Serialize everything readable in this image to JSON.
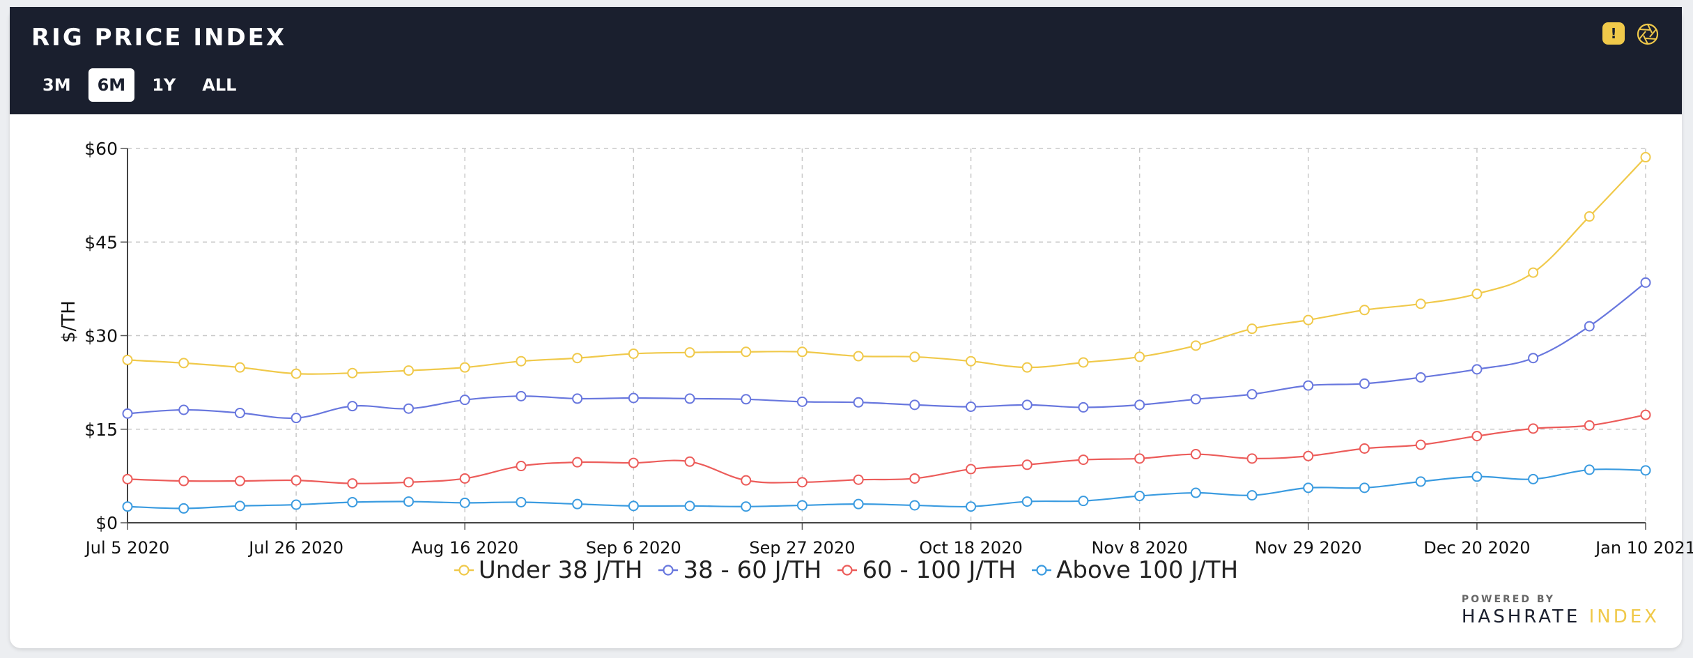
{
  "header": {
    "title": "RIG PRICE INDEX",
    "tabs": [
      {
        "label": "3M",
        "active": false
      },
      {
        "label": "6M",
        "active": true
      },
      {
        "label": "1Y",
        "active": false
      },
      {
        "label": "ALL",
        "active": false
      }
    ],
    "alert_icon": "!",
    "icons": [
      "alert-icon",
      "aperture-icon"
    ]
  },
  "colors": {
    "header_bg": "#1a1f2e",
    "accent": "#f0c94a"
  },
  "chart_data": {
    "type": "line",
    "ylabel": "$/TH",
    "ylim": [
      0,
      60
    ],
    "yticks": [
      {
        "value": 0,
        "label": "$0"
      },
      {
        "value": 15,
        "label": "$15"
      },
      {
        "value": 30,
        "label": "$30"
      },
      {
        "value": 45,
        "label": "$45"
      },
      {
        "value": 60,
        "label": "$60"
      }
    ],
    "grid": true,
    "legend_position": "bottom-center",
    "x": [
      "2020-07-05",
      "2020-07-12",
      "2020-07-19",
      "2020-07-26",
      "2020-08-02",
      "2020-08-09",
      "2020-08-16",
      "2020-08-23",
      "2020-08-30",
      "2020-09-06",
      "2020-09-13",
      "2020-09-20",
      "2020-09-27",
      "2020-10-04",
      "2020-10-11",
      "2020-10-18",
      "2020-10-25",
      "2020-11-01",
      "2020-11-08",
      "2020-11-15",
      "2020-11-22",
      "2020-11-29",
      "2020-12-06",
      "2020-12-13",
      "2020-12-20",
      "2020-12-27",
      "2021-01-03",
      "2021-01-10"
    ],
    "xticks": [
      {
        "index": 0,
        "label": "Jul 5 2020"
      },
      {
        "index": 3,
        "label": "Jul 26 2020"
      },
      {
        "index": 6,
        "label": "Aug 16 2020"
      },
      {
        "index": 9,
        "label": "Sep 6 2020"
      },
      {
        "index": 12,
        "label": "Sep 27 2020"
      },
      {
        "index": 15,
        "label": "Oct 18 2020"
      },
      {
        "index": 18,
        "label": "Nov 8 2020"
      },
      {
        "index": 21,
        "label": "Nov 29 2020"
      },
      {
        "index": 24,
        "label": "Dec 20 2020"
      },
      {
        "index": 27,
        "label": "Jan 10 2021"
      }
    ],
    "series": [
      {
        "name": "Under 38 J/TH",
        "color": "#f0c94a",
        "values": [
          26.1,
          25.6,
          24.9,
          23.9,
          24.0,
          24.4,
          24.9,
          25.9,
          26.4,
          27.1,
          27.3,
          27.4,
          27.4,
          26.7,
          26.6,
          25.9,
          24.9,
          25.7,
          26.6,
          28.4,
          31.1,
          32.5,
          34.1,
          35.1,
          36.7,
          40.1,
          49.1,
          58.6
        ]
      },
      {
        "name": "38 - 60 J/TH",
        "color": "#6877de",
        "values": [
          17.5,
          18.1,
          17.6,
          16.8,
          18.7,
          18.3,
          19.7,
          20.3,
          19.9,
          20.0,
          19.9,
          19.8,
          19.4,
          19.3,
          18.9,
          18.6,
          18.9,
          18.5,
          18.9,
          19.8,
          20.6,
          22.0,
          22.3,
          23.3,
          24.6,
          26.4,
          31.5,
          38.5
        ]
      },
      {
        "name": "60 - 100 J/TH",
        "color": "#ec5c5a",
        "values": [
          7.0,
          6.7,
          6.7,
          6.8,
          6.3,
          6.5,
          7.1,
          9.1,
          9.7,
          9.6,
          9.8,
          6.8,
          6.5,
          6.9,
          7.1,
          8.6,
          9.3,
          10.1,
          10.3,
          11.0,
          10.3,
          10.7,
          11.9,
          12.5,
          13.9,
          15.1,
          15.6,
          17.3
        ]
      },
      {
        "name": "Above 100 J/TH",
        "color": "#3a9be0",
        "values": [
          2.6,
          2.3,
          2.7,
          2.9,
          3.3,
          3.4,
          3.2,
          3.3,
          3.0,
          2.7,
          2.7,
          2.6,
          2.8,
          3.0,
          2.8,
          2.6,
          3.4,
          3.5,
          4.3,
          4.8,
          4.4,
          5.6,
          5.6,
          6.6,
          7.4,
          7.0,
          8.5,
          8.4
        ]
      }
    ]
  },
  "branding": {
    "powered_by": "POWERED BY",
    "name_main": "HASHRATE",
    "name_accent": "INDEX"
  }
}
